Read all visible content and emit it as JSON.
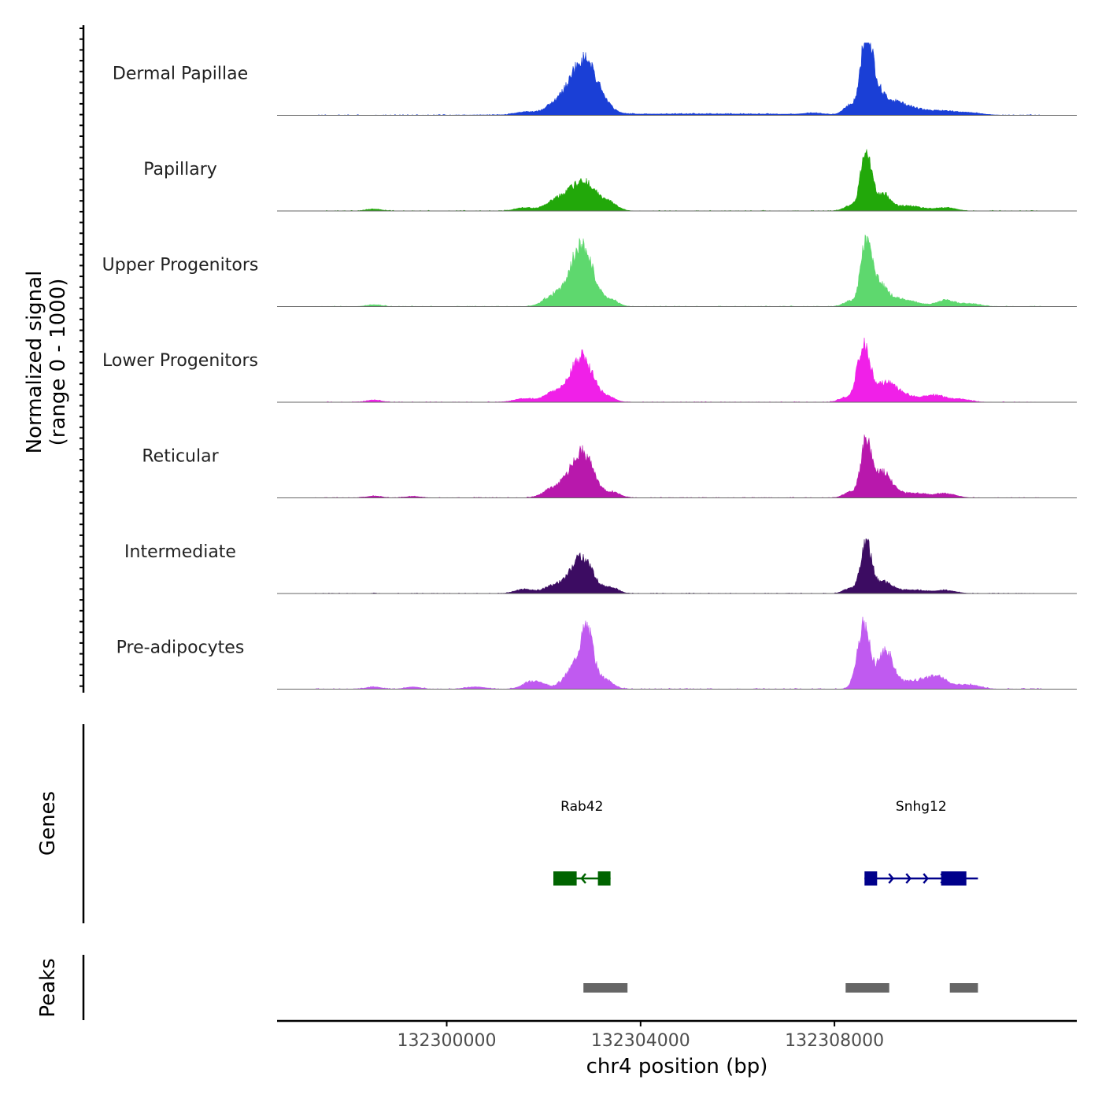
{
  "chart_data": {
    "type": "area",
    "title": "",
    "xlabel": "chr4 position (bp)",
    "signal_axis_label": [
      "Normalized signal",
      "(range 0 - 1000)"
    ],
    "xlim": [
      132296500,
      132313000
    ],
    "x_ticks": [
      {
        "value": 132300000,
        "label": "132300000"
      },
      {
        "value": 132304000,
        "label": "132304000"
      },
      {
        "value": 132308000,
        "label": "132308000"
      }
    ],
    "ylim": [
      0,
      1000
    ],
    "tracks": [
      {
        "name": "Dermal Papillae",
        "color": "#1a3fd6",
        "peaks": [
          [
            132301600,
            40,
            180
          ],
          [
            132302200,
            100,
            220
          ],
          [
            132302750,
            340,
            300
          ],
          [
            132302850,
            460,
            260
          ],
          [
            132303250,
            50,
            200
          ],
          [
            132305300,
            18,
            2500
          ],
          [
            132307550,
            20,
            180
          ],
          [
            132308300,
            120,
            120
          ],
          [
            132308650,
            900,
            110
          ],
          [
            132308780,
            350,
            160
          ],
          [
            132309100,
            160,
            300
          ],
          [
            132309600,
            80,
            400
          ],
          [
            132310300,
            40,
            250
          ],
          [
            132310800,
            30,
            250
          ]
        ],
        "noise": 12
      },
      {
        "name": "Papillary",
        "color": "#22a80a",
        "peaks": [
          [
            132298500,
            25,
            150
          ],
          [
            132301600,
            45,
            180
          ],
          [
            132302200,
            110,
            200
          ],
          [
            132302800,
            420,
            300
          ],
          [
            132303400,
            70,
            140
          ],
          [
            132308300,
            70,
            120
          ],
          [
            132308650,
            900,
            110
          ],
          [
            132309000,
            220,
            150
          ],
          [
            132309500,
            70,
            300
          ],
          [
            132310300,
            45,
            200
          ]
        ],
        "noise": 10
      },
      {
        "name": "Upper Progenitors",
        "color": "#5ed86e",
        "peaks": [
          [
            132298500,
            25,
            150
          ],
          [
            132302200,
            150,
            200
          ],
          [
            132302780,
            880,
            230
          ],
          [
            132303400,
            90,
            140
          ],
          [
            132308300,
            70,
            120
          ],
          [
            132308650,
            860,
            110
          ],
          [
            132308900,
            300,
            180
          ],
          [
            132309400,
            100,
            300
          ],
          [
            132310300,
            90,
            180
          ],
          [
            132310800,
            40,
            200
          ]
        ],
        "noise": 10
      },
      {
        "name": "Lower Progenitors",
        "color": "#f020e8",
        "peaks": [
          [
            132298500,
            30,
            150
          ],
          [
            132301600,
            50,
            200
          ],
          [
            132302200,
            130,
            200
          ],
          [
            132302780,
            650,
            230
          ],
          [
            132303350,
            60,
            140
          ],
          [
            132308200,
            60,
            120
          ],
          [
            132308600,
            800,
            130
          ],
          [
            132309050,
            260,
            220
          ],
          [
            132309500,
            80,
            300
          ],
          [
            132310100,
            90,
            200
          ],
          [
            132310600,
            40,
            200
          ]
        ],
        "noise": 10
      },
      {
        "name": "Reticular",
        "color": "#b818ac",
        "peaks": [
          [
            132298500,
            25,
            150
          ],
          [
            132299300,
            20,
            150
          ],
          [
            132302200,
            130,
            200
          ],
          [
            132302780,
            660,
            240
          ],
          [
            132303450,
            70,
            140
          ],
          [
            132308300,
            80,
            120
          ],
          [
            132308650,
            780,
            110
          ],
          [
            132309000,
            350,
            180
          ],
          [
            132309600,
            70,
            300
          ],
          [
            132310300,
            60,
            200
          ]
        ],
        "noise": 10
      },
      {
        "name": "Intermediate",
        "color": "#3c0c62",
        "peaks": [
          [
            132301600,
            60,
            180
          ],
          [
            132302200,
            110,
            200
          ],
          [
            132302780,
            520,
            230
          ],
          [
            132303400,
            80,
            140
          ],
          [
            132308300,
            70,
            120
          ],
          [
            132308650,
            720,
            110
          ],
          [
            132309000,
            160,
            180
          ],
          [
            132309600,
            50,
            300
          ],
          [
            132310300,
            40,
            200
          ]
        ],
        "noise": 10
      },
      {
        "name": "Pre-adipocytes",
        "color": "#c05af0",
        "peaks": [
          [
            132298500,
            30,
            150
          ],
          [
            132299300,
            30,
            150
          ],
          [
            132300600,
            30,
            200
          ],
          [
            132301800,
            120,
            200
          ],
          [
            132302750,
            400,
            250
          ],
          [
            132302900,
            560,
            120
          ],
          [
            132303300,
            100,
            150
          ],
          [
            132308600,
            900,
            130
          ],
          [
            132309050,
            520,
            150
          ],
          [
            132309500,
            100,
            300
          ],
          [
            132310100,
            170,
            250
          ],
          [
            132310800,
            60,
            200
          ]
        ],
        "noise": 14
      }
    ],
    "genes_label": "Genes",
    "genes": [
      {
        "name": "Rab42",
        "strand": "-",
        "color": "#006400",
        "start": 132302200,
        "end": 132303380,
        "exons": [
          [
            132302200,
            132302680
          ],
          [
            132303120,
            132303380
          ]
        ]
      },
      {
        "name": "Snhg12",
        "strand": "+",
        "color": "#00008b",
        "start": 132308620,
        "end": 132310960,
        "exons": [
          [
            132308620,
            132308880
          ],
          [
            132310200,
            132310720
          ],
          [
            132310480,
            132310720
          ]
        ]
      }
    ],
    "peaks_label": "Peaks",
    "peak_regions": [
      [
        132302820,
        132303730
      ],
      [
        132308230,
        132309130
      ],
      [
        132310380,
        132310960
      ]
    ]
  }
}
